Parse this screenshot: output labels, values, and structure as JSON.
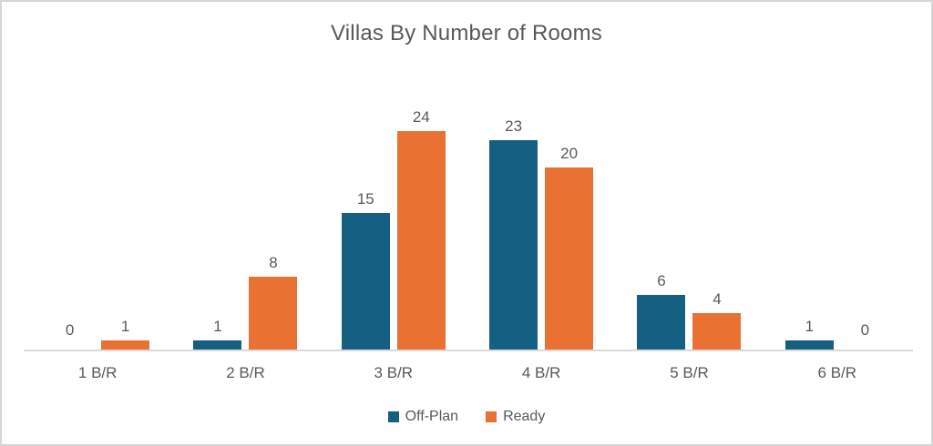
{
  "window": {
    "background": "#ffffff",
    "border_color": "#d6d6d6"
  },
  "chart_data": {
    "type": "bar",
    "title": "Villas By Number of Rooms",
    "categories": [
      "1 B/R",
      "2 B/R",
      "3 B/R",
      "4 B/R",
      "5 B/R",
      "6 B/R"
    ],
    "series": [
      {
        "name": "Off-Plan",
        "color": "#156082",
        "values": [
          0,
          1,
          15,
          23,
          6,
          1
        ]
      },
      {
        "name": "Ready",
        "color": "#E97132",
        "values": [
          1,
          8,
          24,
          20,
          4,
          0
        ]
      }
    ],
    "ylim": [
      0,
      24
    ],
    "xlabel": "",
    "ylabel": "",
    "grid": false,
    "data_labels": true,
    "legend_position": "bottom",
    "text_color": "#595959",
    "axis_line_color": "#d9d9d9"
  }
}
